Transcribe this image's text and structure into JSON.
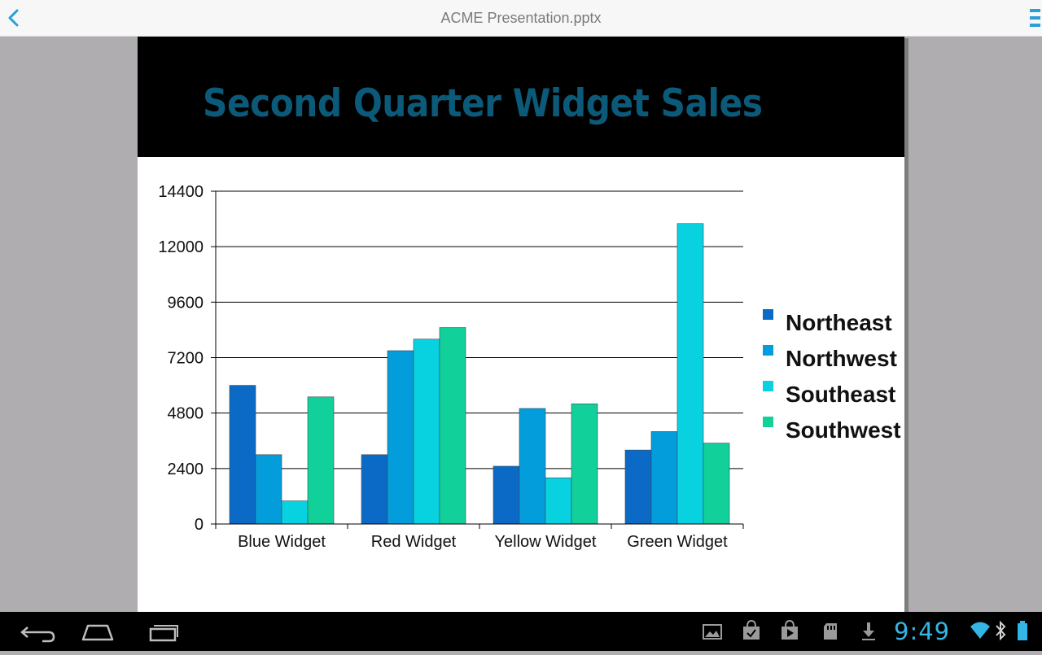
{
  "app": {
    "document_title": "ACME Presentation.pptx",
    "back_icon": "chevron-left-icon",
    "menu_icon": "menu-icon",
    "accent_color": "#33b5e5"
  },
  "slide": {
    "title": "Second Quarter Widget Sales",
    "title_color": "#0c5a7a",
    "header_background": "#000000"
  },
  "chart_data": {
    "type": "bar",
    "title": "",
    "xlabel": "",
    "ylabel": "",
    "categories": [
      "Blue Widget",
      "Red Widget",
      "Yellow Widget",
      "Green Widget"
    ],
    "series": [
      {
        "name": "Northeast",
        "color": "#0a6ac5",
        "values": [
          6000,
          3000,
          2500,
          3200
        ]
      },
      {
        "name": "Northwest",
        "color": "#049ddc",
        "values": [
          3000,
          7500,
          5000,
          4000
        ]
      },
      {
        "name": "Southeast",
        "color": "#09d2e0",
        "values": [
          1000,
          8000,
          2000,
          13000
        ]
      },
      {
        "name": "Southwest",
        "color": "#12d09a",
        "values": [
          5500,
          8500,
          5200,
          3500
        ]
      }
    ],
    "y_ticks": [
      "0",
      "2400",
      "4800",
      "7200",
      "9600",
      "12000",
      "14400"
    ],
    "ylim": [
      0,
      14400
    ],
    "grid": true,
    "legend_position": "right"
  },
  "system_bar": {
    "clock": "9:49",
    "nav_icons": [
      "back-icon",
      "home-icon",
      "recent-apps-icon"
    ],
    "status_icons": [
      "gallery-notification-icon",
      "shopping-bag-icon",
      "play-store-icon",
      "sd-card-icon",
      "download-icon",
      "wifi-icon",
      "bluetooth-icon",
      "battery-icon"
    ]
  }
}
